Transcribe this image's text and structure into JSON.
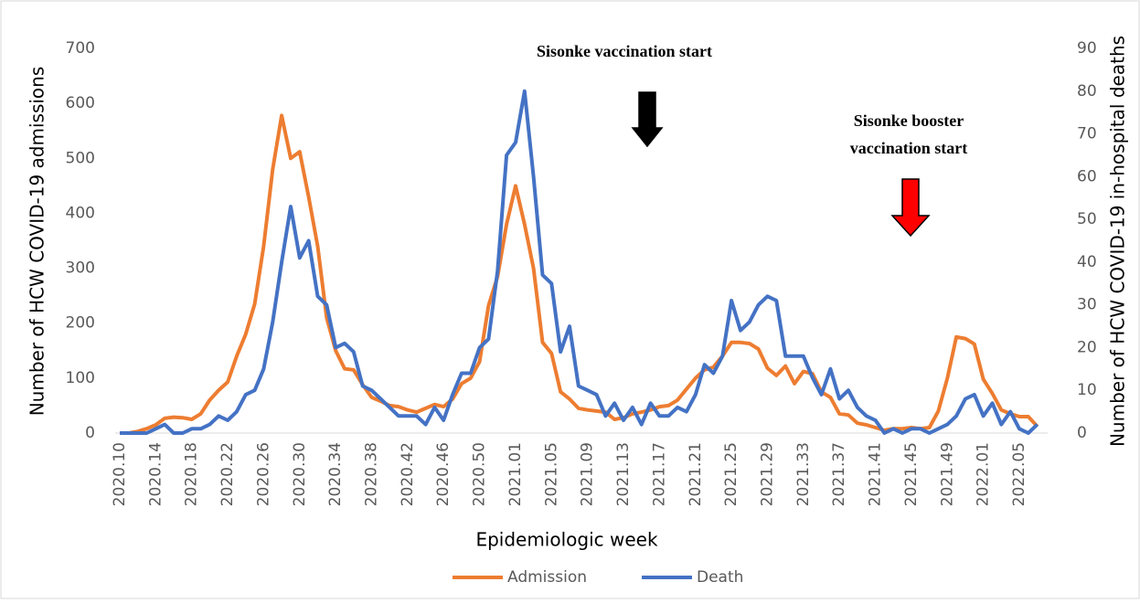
{
  "chart_data": {
    "type": "line",
    "xlabel": "Epidemiologic week",
    "ylabel": "Number of HCW COVID-19 admissions",
    "y2label": "Number of HCW COVID-19 in-hospital deaths",
    "categories": [
      "2020.10",
      null,
      null,
      null,
      "2020.14",
      null,
      null,
      null,
      "2020.18",
      null,
      null,
      null,
      "2020.22",
      null,
      null,
      null,
      "2020.26",
      null,
      null,
      null,
      "2020.30",
      null,
      null,
      null,
      "2020.34",
      null,
      null,
      null,
      "2020.38",
      null,
      null,
      null,
      "2020.42",
      null,
      null,
      null,
      "2020.46",
      null,
      null,
      null,
      "2020.50",
      null,
      null,
      null,
      "2021.01",
      null,
      null,
      null,
      "2021.05",
      null,
      null,
      null,
      "2021.09",
      null,
      null,
      null,
      "2021.13",
      null,
      null,
      null,
      "2021.17",
      null,
      null,
      null,
      "2021.21",
      null,
      null,
      null,
      "2021.25",
      null,
      null,
      null,
      "2021.29",
      null,
      null,
      null,
      "2021.33",
      null,
      null,
      null,
      "2021.37",
      null,
      null,
      null,
      "2021.41",
      null,
      null,
      null,
      "2021.45",
      null,
      null,
      null,
      "2021.49",
      null,
      null,
      null,
      "2022.01",
      null,
      null,
      null,
      "2022.05",
      null,
      null
    ],
    "series": [
      {
        "name": "Admission",
        "color": "#ED7D31",
        "values": [
          0,
          0,
          3,
          8,
          15,
          27,
          29,
          28,
          25,
          35,
          60,
          78,
          93,
          140,
          180,
          235,
          340,
          480,
          578,
          500,
          512,
          430,
          340,
          210,
          150,
          117,
          115,
          88,
          65,
          58,
          50,
          48,
          42,
          38,
          45,
          52,
          48,
          62,
          90,
          100,
          130,
          232,
          285,
          380,
          450,
          380,
          300,
          165,
          145,
          75,
          62,
          45,
          42,
          40,
          38,
          25,
          28,
          35,
          38,
          42,
          48,
          50,
          60,
          80,
          100,
          115,
          120,
          140,
          165,
          165,
          163,
          153,
          118,
          105,
          122,
          90,
          112,
          108,
          75,
          65,
          35,
          33,
          18,
          15,
          10,
          5,
          8,
          8,
          10,
          8,
          10,
          40,
          100,
          175,
          172,
          162,
          98,
          72,
          42,
          35,
          30,
          30,
          12
        ]
      },
      {
        "name": "Death",
        "color": "#4472C4",
        "axis": "y2",
        "values": [
          0,
          0,
          0,
          0,
          1,
          2,
          0,
          0,
          1,
          1,
          2,
          4,
          3,
          5,
          9,
          10,
          15,
          26,
          40,
          53,
          41,
          45,
          32,
          30,
          20,
          21,
          19,
          11,
          10,
          8,
          6,
          4,
          4,
          4,
          2,
          6,
          3,
          9,
          14,
          14,
          20,
          22,
          38,
          65,
          68,
          80,
          60,
          37,
          35,
          19,
          25,
          11,
          10,
          9,
          4,
          7,
          3,
          6,
          2,
          7,
          4,
          4,
          6,
          5,
          9,
          16,
          14,
          18,
          31,
          24,
          26,
          30,
          32,
          31,
          18,
          18,
          18,
          13,
          9,
          15,
          8,
          10,
          6,
          4,
          3,
          0,
          1,
          0,
          1,
          1,
          0,
          1,
          2,
          4,
          8,
          9,
          4,
          7,
          2,
          5,
          1,
          0,
          2
        ]
      }
    ],
    "ylim": [
      0,
      700
    ],
    "yticks": [
      0,
      100,
      200,
      300,
      400,
      500,
      600,
      700
    ],
    "y2lim": [
      0,
      90
    ],
    "y2ticks": [
      0,
      10,
      20,
      30,
      40,
      50,
      60,
      70,
      80,
      90
    ],
    "grid": false,
    "legend": "bottom",
    "annotations": [
      {
        "lines": [
          "Sisonke vaccination start"
        ],
        "arrow_color": "#000000"
      },
      {
        "lines": [
          "Sisonke booster",
          "vaccination start"
        ],
        "arrow_color": "#FF0000"
      }
    ]
  }
}
